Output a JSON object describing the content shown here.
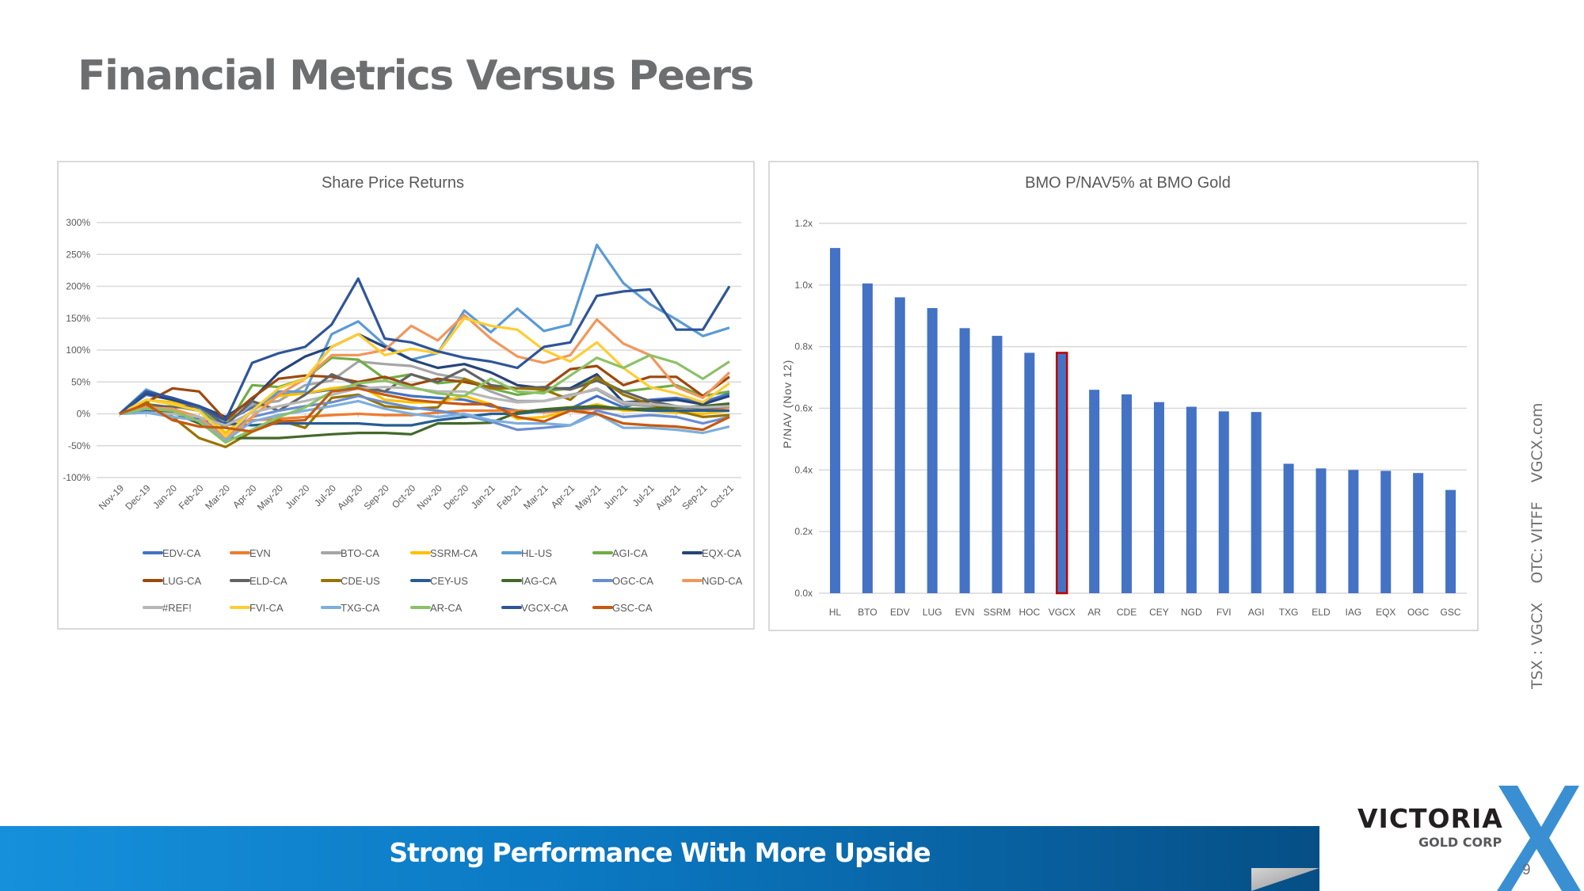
{
  "page": {
    "title": "Financial Metrics Versus Peers",
    "footer_banner": "Strong Performance With More Upside",
    "sidebar_text": "TSX : VGCX    OTC: VITFF    VGCX.com",
    "page_number": "9",
    "logo": {
      "name": "VICTORIA",
      "subtitle": "GOLD CORP",
      "mark": "X",
      "mark_color": "#3a8fd3"
    }
  },
  "chart_data": [
    {
      "type": "line",
      "title": "Share Price Returns",
      "xlabel": "",
      "ylabel": "",
      "ylim": [
        -1.0,
        3.0
      ],
      "yticks": [
        3.0,
        2.5,
        2.0,
        1.5,
        1.0,
        0.5,
        0.0,
        -0.5,
        -1.0
      ],
      "ytick_labels": [
        "300%",
        "250%",
        "200%",
        "150%",
        "100%",
        "50%",
        "0%",
        "-50%",
        "-100%"
      ],
      "grid": true,
      "legend_position": "bottom",
      "x": [
        "Nov-19",
        "Dec-19",
        "Jan-20",
        "Feb-20",
        "Mar-20",
        "Apr-20",
        "May-20",
        "Jun-20",
        "Jul-20",
        "Aug-20",
        "Sep-20",
        "Oct-20",
        "Nov-20",
        "Dec-20",
        "Jan-21",
        "Feb-21",
        "Mar-21",
        "Apr-21",
        "May-21",
        "Jun-21",
        "Jul-21",
        "Aug-21",
        "Sep-21",
        "Oct-21"
      ],
      "series": [
        {
          "name": "EDV-CA",
          "color": "#4472c4",
          "values": [
            0,
            0.3,
            0.22,
            0.08,
            -0.12,
            0.1,
            0.3,
            0.32,
            0.38,
            0.42,
            0.35,
            0.28,
            0.25,
            0.22,
            0.12,
            0.05,
            0.03,
            0.08,
            0.28,
            0.1,
            0.22,
            0.25,
            0.18,
            0.32
          ]
        },
        {
          "name": "EVN",
          "color": "#ed7d31",
          "values": [
            0,
            0.05,
            0.02,
            -0.05,
            -0.18,
            -0.1,
            -0.08,
            -0.05,
            -0.02,
            0,
            -0.02,
            -0.02,
            0.02,
            0.05,
            0.05,
            0.05,
            0.03,
            0.05,
            0.08,
            0.07,
            0.08,
            0.06,
            0.05,
            0.1
          ]
        },
        {
          "name": "BTO-CA",
          "color": "#a5a5a5",
          "values": [
            0,
            0.1,
            0.12,
            0.05,
            -0.15,
            0.15,
            0.2,
            0.45,
            0.52,
            0.82,
            0.78,
            0.75,
            0.62,
            0.55,
            0.35,
            0.2,
            0.2,
            0.3,
            0.38,
            0.15,
            0.12,
            0.1,
            0.08,
            0.15
          ]
        },
        {
          "name": "SSRM-CA",
          "color": "#ffc000",
          "values": [
            0,
            0.22,
            0.18,
            0.05,
            -0.3,
            0.05,
            0.28,
            0.32,
            0.4,
            0.45,
            0.22,
            0.18,
            0.18,
            0.28,
            0.15,
            -0.08,
            -0.05,
            0.05,
            0.15,
            0.05,
            0.05,
            0.02,
            0.0,
            0.05
          ]
        },
        {
          "name": "HL-US",
          "color": "#5b9bd5",
          "values": [
            0,
            0.38,
            0.22,
            0.12,
            -0.4,
            0.05,
            0.35,
            0.35,
            1.25,
            1.45,
            1.08,
            0.85,
            0.95,
            1.62,
            1.28,
            1.65,
            1.3,
            1.4,
            2.65,
            2.05,
            1.72,
            1.48,
            1.22,
            1.35
          ]
        },
        {
          "name": "AGI-CA",
          "color": "#70ad47",
          "values": [
            0,
            0.1,
            0.12,
            0.05,
            -0.22,
            0.45,
            0.42,
            0.55,
            0.88,
            0.85,
            0.55,
            0.62,
            0.48,
            0.52,
            0.4,
            0.3,
            0.35,
            0.4,
            0.55,
            0.35,
            0.4,
            0.45,
            0.28,
            0.35
          ]
        },
        {
          "name": "EQX-CA",
          "color": "#264478",
          "values": [
            0,
            0.32,
            0.22,
            0.12,
            -0.05,
            0.22,
            0.65,
            0.9,
            1.05,
            1.25,
            1.05,
            0.85,
            0.72,
            0.78,
            0.65,
            0.45,
            0.4,
            0.4,
            0.62,
            0.18,
            0.2,
            0.22,
            0.15,
            0.28
          ]
        },
        {
          "name": "LUG-CA",
          "color": "#9e480e",
          "values": [
            0,
            0.18,
            0.4,
            0.35,
            -0.1,
            0.25,
            0.55,
            0.6,
            0.58,
            0.5,
            0.58,
            0.45,
            0.55,
            0.5,
            0.42,
            0.4,
            0.4,
            0.7,
            0.75,
            0.45,
            0.58,
            0.58,
            0.28,
            0.58
          ]
        },
        {
          "name": "ELD-CA",
          "color": "#636363",
          "values": [
            0,
            0.15,
            0.1,
            0.12,
            -0.18,
            0.2,
            0.05,
            0.3,
            0.62,
            0.45,
            0.35,
            0.62,
            0.5,
            0.7,
            0.45,
            0.4,
            0.42,
            0.38,
            0.52,
            0.35,
            0.2,
            0.12,
            0.08,
            0.12
          ]
        },
        {
          "name": "CDE-US",
          "color": "#997300",
          "values": [
            0,
            0.18,
            -0.05,
            -0.38,
            -0.52,
            -0.28,
            -0.1,
            -0.22,
            0.25,
            0.3,
            0.12,
            0.08,
            0.1,
            0.55,
            0.4,
            0.4,
            0.38,
            0.22,
            0.58,
            0.3,
            0.15,
            0.05,
            -0.05,
            -0.02
          ]
        },
        {
          "name": "CEY-US",
          "color": "#255e91",
          "values": [
            0,
            0.05,
            0.02,
            -0.08,
            -0.15,
            -0.18,
            -0.15,
            -0.15,
            -0.15,
            -0.15,
            -0.18,
            -0.18,
            -0.1,
            -0.05,
            0.0,
            0.0,
            0.05,
            0.08,
            0.1,
            0.08,
            0.05,
            0.05,
            0.05,
            0.05
          ]
        },
        {
          "name": "IAG-CA",
          "color": "#43682b",
          "values": [
            0,
            0.1,
            0.02,
            -0.15,
            -0.38,
            -0.38,
            -0.38,
            -0.35,
            -0.32,
            -0.3,
            -0.3,
            -0.32,
            -0.15,
            -0.15,
            -0.14,
            0.02,
            0.07,
            0.1,
            0.12,
            0.08,
            0.08,
            0.1,
            0.12,
            0.16
          ]
        },
        {
          "name": "OGC-CA",
          "color": "#698ed0",
          "values": [
            0,
            0.02,
            0.0,
            -0.05,
            -0.35,
            -0.05,
            0.05,
            0.12,
            0.18,
            0.28,
            0.18,
            0.1,
            0.05,
            -0.02,
            -0.12,
            -0.25,
            -0.22,
            -0.18,
            0.05,
            -0.05,
            -0.02,
            -0.05,
            -0.15,
            -0.05
          ]
        },
        {
          "name": "NGD-CA",
          "color": "#f1975a",
          "values": [
            0,
            0.1,
            0.08,
            -0.05,
            -0.4,
            -0.05,
            0.3,
            0.55,
            0.92,
            0.92,
            1.0,
            1.38,
            1.15,
            1.55,
            1.18,
            0.9,
            0.8,
            0.92,
            1.48,
            1.1,
            0.92,
            0.42,
            0.25,
            0.65
          ]
        },
        {
          "name": "#REF!",
          "color": "#b7b7b7",
          "values": [
            0,
            0.02,
            0.0,
            -0.05,
            -0.18,
            0.02,
            0.12,
            0.2,
            0.3,
            0.4,
            0.42,
            0.4,
            0.35,
            0.35,
            0.25,
            0.18,
            0.2,
            0.28,
            0.4,
            0.18,
            0.15,
            0.12,
            0.1,
            0.12
          ]
        },
        {
          "name": "FVI-CA",
          "color": "#ffcd33",
          "values": [
            0,
            0.22,
            0.15,
            0.05,
            -0.35,
            0.05,
            0.4,
            0.55,
            1.05,
            1.25,
            0.92,
            1.02,
            0.95,
            1.5,
            1.38,
            1.32,
            1.0,
            0.82,
            1.12,
            0.72,
            0.42,
            0.32,
            0.18,
            0.48
          ]
        },
        {
          "name": "TXG-CA",
          "color": "#7cafdd",
          "values": [
            0,
            0.02,
            -0.05,
            -0.1,
            -0.42,
            -0.12,
            -0.02,
            0.05,
            0.12,
            0.2,
            0.08,
            0.0,
            -0.05,
            0.0,
            -0.1,
            -0.15,
            -0.15,
            -0.18,
            0.0,
            -0.22,
            -0.22,
            -0.25,
            -0.3,
            -0.2
          ]
        },
        {
          "name": "AR-CA",
          "color": "#8cc168",
          "values": [
            0,
            0.08,
            0.05,
            -0.12,
            -0.45,
            -0.25,
            -0.05,
            0.1,
            0.35,
            0.48,
            0.52,
            0.42,
            0.32,
            0.28,
            0.55,
            0.35,
            0.32,
            0.6,
            0.88,
            0.72,
            0.92,
            0.8,
            0.55,
            0.82
          ]
        },
        {
          "name": "VGCX-CA",
          "color": "#2f5597",
          "values": [
            0,
            0.35,
            0.25,
            0.12,
            -0.1,
            0.8,
            0.95,
            1.05,
            1.4,
            2.12,
            1.18,
            1.12,
            0.98,
            0.88,
            0.82,
            0.72,
            1.05,
            1.12,
            1.85,
            1.92,
            1.95,
            1.32,
            1.32,
            2.0
          ]
        },
        {
          "name": "GSC-CA",
          "color": "#c55a11",
          "values": [
            0,
            0.15,
            -0.1,
            -0.2,
            -0.22,
            -0.28,
            -0.12,
            -0.1,
            0.35,
            0.4,
            0.3,
            0.22,
            0.18,
            0.15,
            0.15,
            -0.05,
            -0.12,
            0.05,
            0.0,
            -0.15,
            -0.18,
            -0.2,
            -0.25,
            -0.05
          ]
        }
      ]
    },
    {
      "type": "bar",
      "title": "BMO P/NAV5% at BMO Gold",
      "xlabel": "",
      "ylabel": "P/NAV (Nov 12)",
      "ylim": [
        0.0,
        1.2
      ],
      "yticks": [
        1.2,
        1.0,
        0.8,
        0.6,
        0.4,
        0.2,
        0.0
      ],
      "ytick_labels": [
        "1.2x",
        "1.0x",
        "0.8x",
        "0.6x",
        "0.4x",
        "0.2x",
        "0.0x"
      ],
      "grid": true,
      "bar_color": "#4472c4",
      "highlight_color": "#c00000",
      "highlight_category": "VGCX",
      "categories": [
        "HL",
        "BTO",
        "EDV",
        "LUG",
        "EVN",
        "SSRM",
        "HOC",
        "VGCX",
        "AR",
        "CDE",
        "CEY",
        "NGD",
        "FVI",
        "AGI",
        "TXG",
        "ELD",
        "IAG",
        "EQX",
        "OGC",
        "GSC"
      ],
      "values": [
        1.12,
        1.005,
        0.96,
        0.925,
        0.86,
        0.835,
        0.78,
        0.78,
        0.66,
        0.645,
        0.62,
        0.605,
        0.59,
        0.588,
        0.42,
        0.405,
        0.4,
        0.397,
        0.39,
        0.335
      ]
    }
  ]
}
